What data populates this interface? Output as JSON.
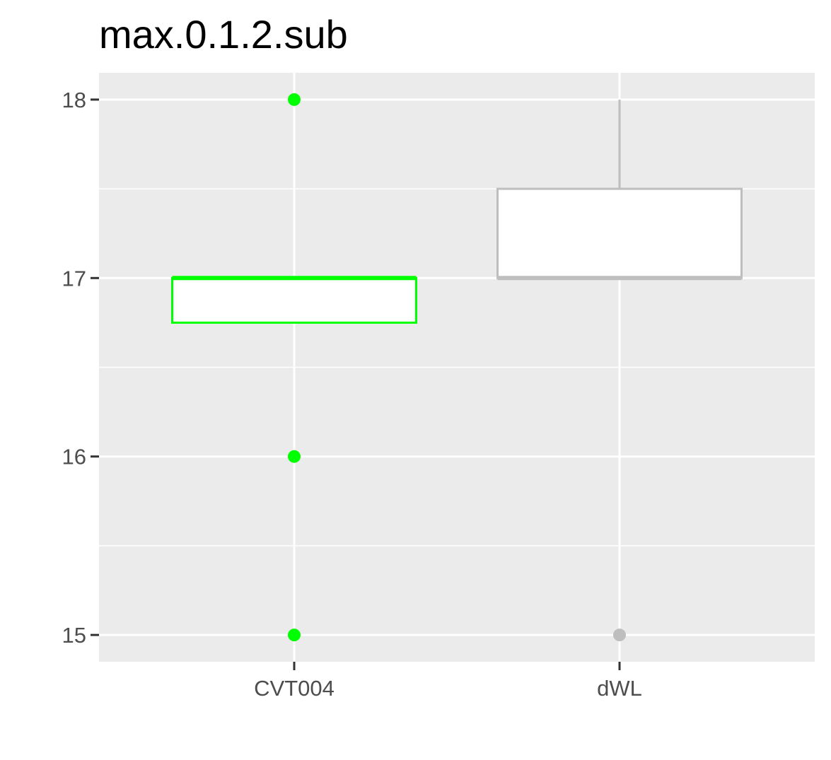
{
  "chart_data": {
    "type": "boxplot",
    "title": "max.0.1.2.sub",
    "xlabel": "",
    "ylabel": "",
    "categories": [
      "CVT004",
      "dWL"
    ],
    "ylim": [
      14.85,
      18.15
    ],
    "yticks": [
      15,
      16,
      17,
      18
    ],
    "grid": true,
    "background": "#ebebeb",
    "boxes": [
      {
        "category": "CVT004",
        "color": "#00ff00",
        "whisker_low": 16.75,
        "q1": 16.75,
        "median": 17,
        "q3": 17,
        "whisker_high": 17,
        "outliers": [
          18,
          16,
          15
        ]
      },
      {
        "category": "dWL",
        "color": "#bebebe",
        "whisker_low": 17,
        "q1": 17,
        "median": 17,
        "q3": 17.5,
        "whisker_high": 18,
        "outliers": [
          15
        ]
      }
    ]
  }
}
